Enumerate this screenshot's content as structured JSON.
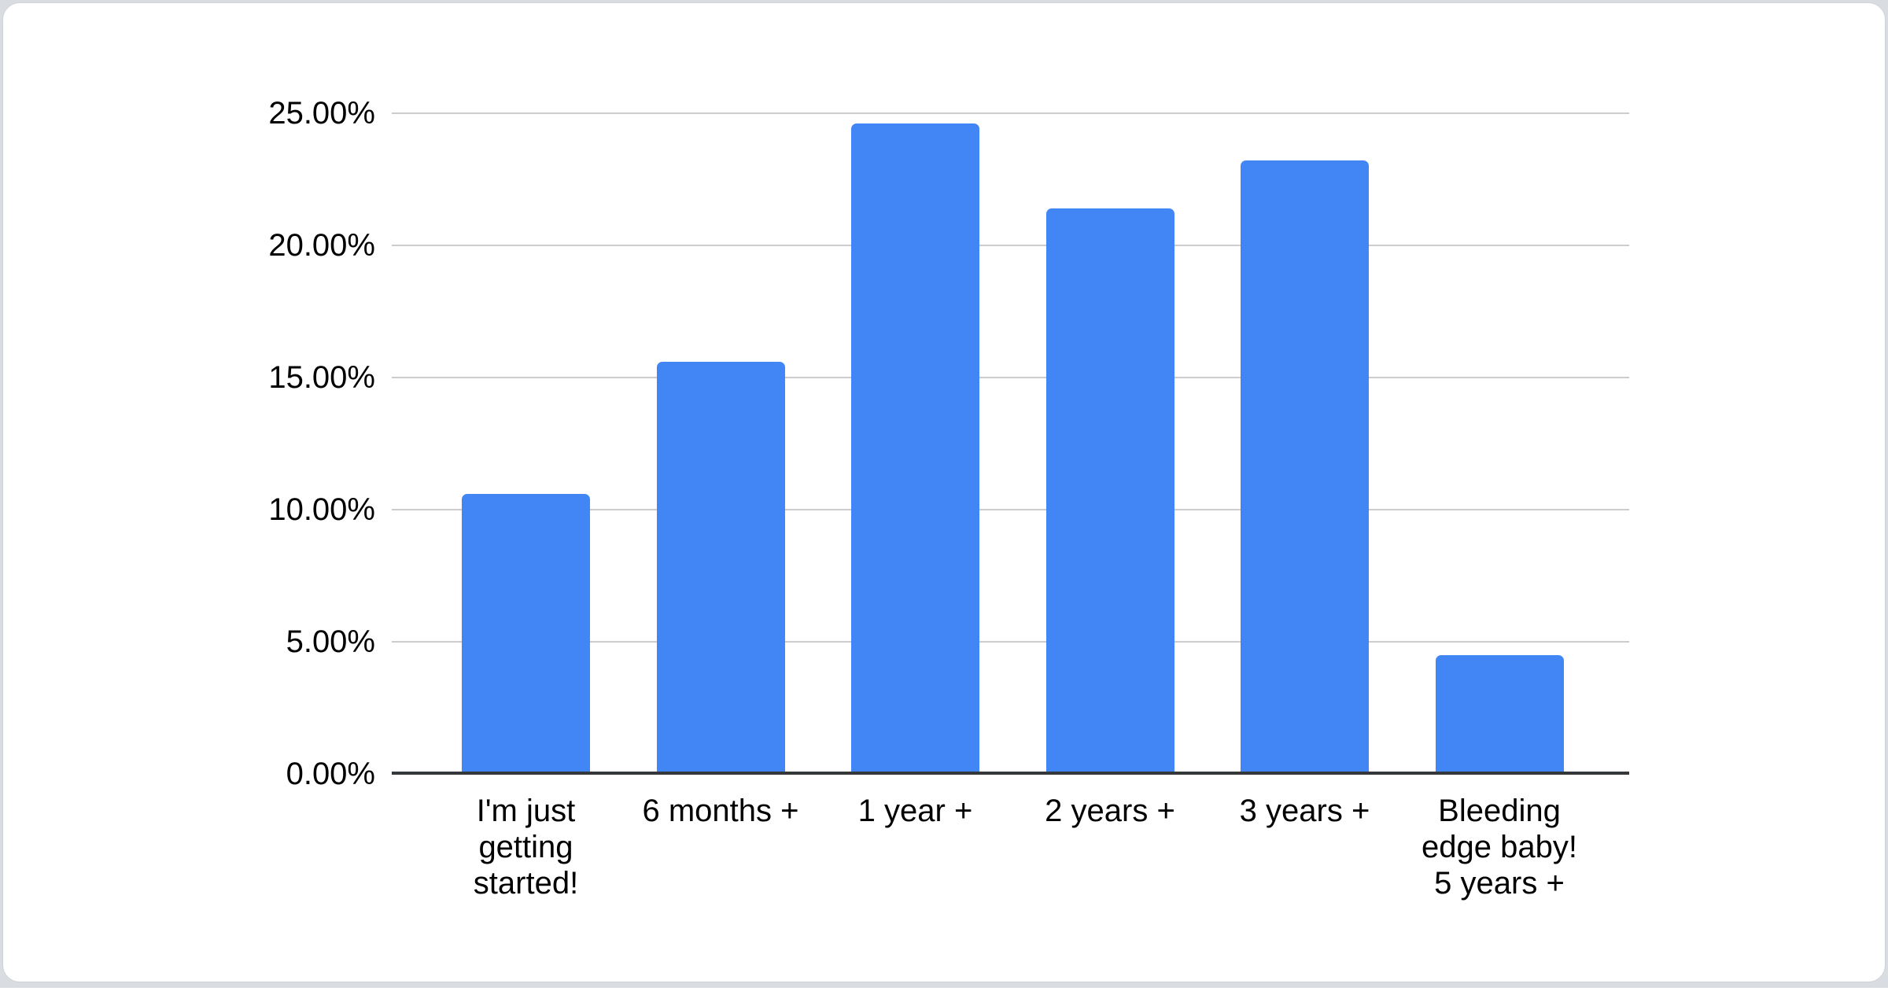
{
  "window": {
    "background_color": "#d9dde1",
    "card_background_color": "#ffffff"
  },
  "chart_data": {
    "type": "bar",
    "title": "",
    "categories": [
      "I'm just getting started!",
      "6 months +",
      "1 year +",
      "2 years +",
      "3 years +",
      "Bleeding edge baby! 5 years +"
    ],
    "category_label_lines": [
      [
        "I'm just",
        "getting",
        "started!"
      ],
      [
        "6 months +"
      ],
      [
        "1 year +"
      ],
      [
        "2 years +"
      ],
      [
        "3 years +"
      ],
      [
        "Bleeding",
        "edge baby!",
        "5 years +"
      ]
    ],
    "values": [
      10.6,
      15.6,
      24.6,
      21.4,
      23.2,
      4.5
    ],
    "value_unit": "%",
    "xlabel": "",
    "ylabel": "",
    "ylim": [
      0,
      25
    ],
    "yticks": [
      0,
      5,
      10,
      15,
      20,
      25
    ],
    "ytick_labels": [
      "0.00%",
      "5.00%",
      "10.00%",
      "15.00%",
      "20.00%",
      "25.00%"
    ],
    "legend": "none",
    "grid": true,
    "bar_color": "#4285f4",
    "gridline_color": "#cccccc",
    "axis_line_color": "#35383b",
    "label_color": "#000000"
  }
}
